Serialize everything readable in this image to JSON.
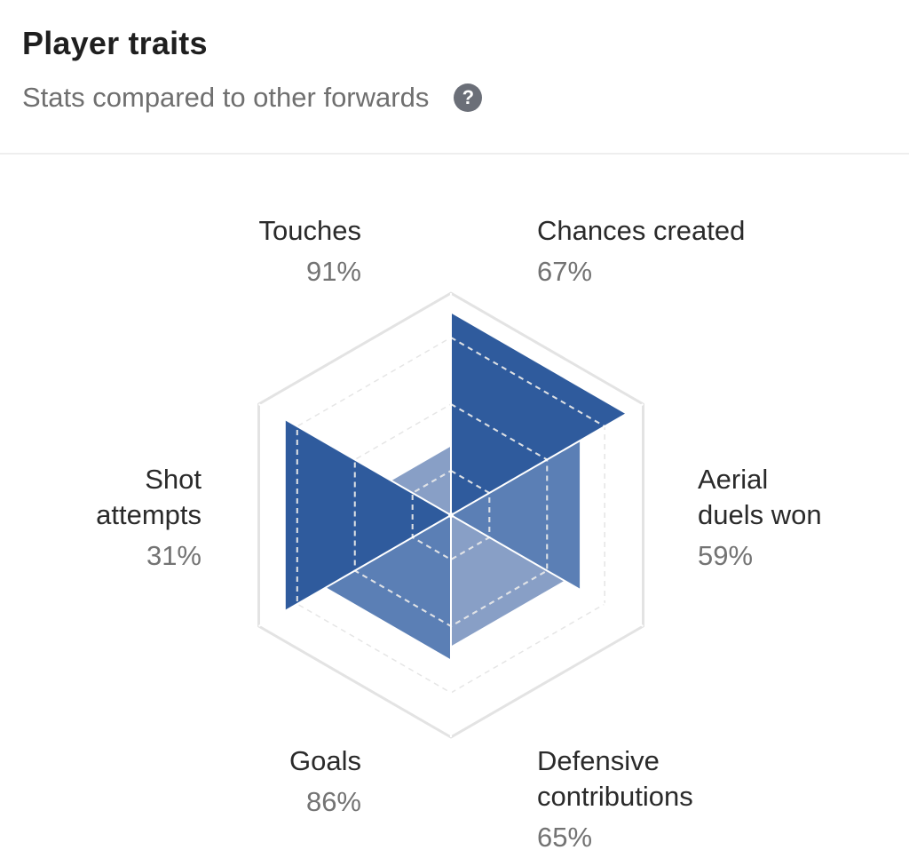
{
  "header": {
    "title": "Player traits",
    "subtitle": "Stats compared to other forwards",
    "help_icon": "question-mark-icon",
    "help_glyph": "?"
  },
  "colors": {
    "dark_blue": "#2f5b9d",
    "medium_blue": "#5b7fb5",
    "light_blue": "#889fc6",
    "grid": "#e3e3e3"
  },
  "chart_data": {
    "type": "radar",
    "title": "Player traits",
    "subtitle": "Stats compared to other forwards",
    "scale": [
      0,
      100
    ],
    "axes": [
      {
        "name": "Touches",
        "value": 91,
        "display": "91%"
      },
      {
        "name": "Chances created",
        "value": 67,
        "display": "67%"
      },
      {
        "name": "Aerial duels won",
        "value": 59,
        "display": "59%"
      },
      {
        "name": "Defensive contributions",
        "value": 65,
        "display": "65%"
      },
      {
        "name": "Goals",
        "value": 86,
        "display": "86%"
      },
      {
        "name": "Shot attempts",
        "value": 31,
        "display": "31%"
      }
    ]
  },
  "labels": {
    "touches": {
      "line1": "Touches",
      "value": "91%"
    },
    "chances": {
      "line1": "Chances created",
      "value": "67%"
    },
    "aerial": {
      "line1": "Aerial",
      "line2": "duels won",
      "value": "59%"
    },
    "defensive": {
      "line1": "Defensive",
      "line2": "contributions",
      "value": "65%"
    },
    "goals": {
      "line1": "Goals",
      "value": "86%"
    },
    "shots": {
      "line1": "Shot",
      "line2": "attempts",
      "value": "31%"
    }
  }
}
